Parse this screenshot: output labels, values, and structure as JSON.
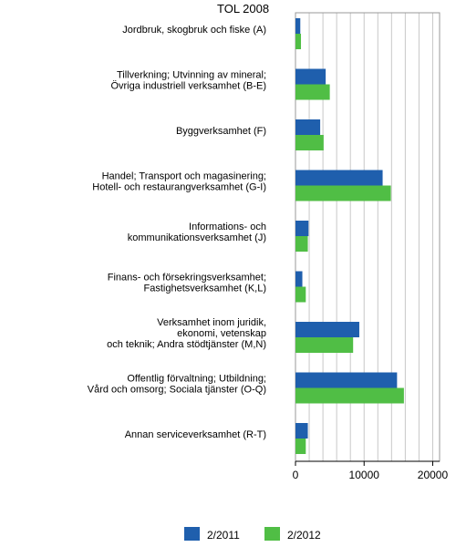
{
  "chart_data": {
    "type": "bar",
    "orientation": "horizontal",
    "title": "TOL 2008",
    "categories": [
      [
        "Jordbruk, skogbruk och fiske (A)"
      ],
      [
        "Tillverkning; Utvinning av mineral;",
        "Övriga industriell verksamhet (B-E)"
      ],
      [
        "Byggverksamhet (F)"
      ],
      [
        "Handel; Transport och magasinering;",
        "Hotell- och restaurangverksamhet (G-I)"
      ],
      [
        "Informations- och",
        "kommunikationsverksamhet (J)"
      ],
      [
        "Finans- och försekringsverksamhet;",
        "Fastighetsverksamhet (K,L)"
      ],
      [
        "Verksamhet inom juridik,",
        "ekonomi, vetenskap",
        "och teknik; Andra stödtjänster (M,N)"
      ],
      [
        "Offentlig förvaltning; Utbildning;",
        "Vård och omsorg; Sociala tjänster (O-Q)"
      ],
      [
        "Annan serviceverksamhet (R-T)"
      ]
    ],
    "series": [
      {
        "name": "2/2011",
        "color": "#1f5fad",
        "values": [
          700,
          4400,
          3600,
          12700,
          1900,
          1000,
          9300,
          14800,
          1800
        ]
      },
      {
        "name": "2/2012",
        "color": "#50be45",
        "values": [
          800,
          5000,
          4100,
          13900,
          1800,
          1500,
          8400,
          15800,
          1500
        ]
      }
    ],
    "xlim": [
      0,
      21000
    ],
    "xticks": [
      0,
      10000,
      20000
    ],
    "xtick_labels": [
      "0",
      "10000",
      "20000"
    ],
    "grid": true,
    "legend_position": "bottom"
  }
}
